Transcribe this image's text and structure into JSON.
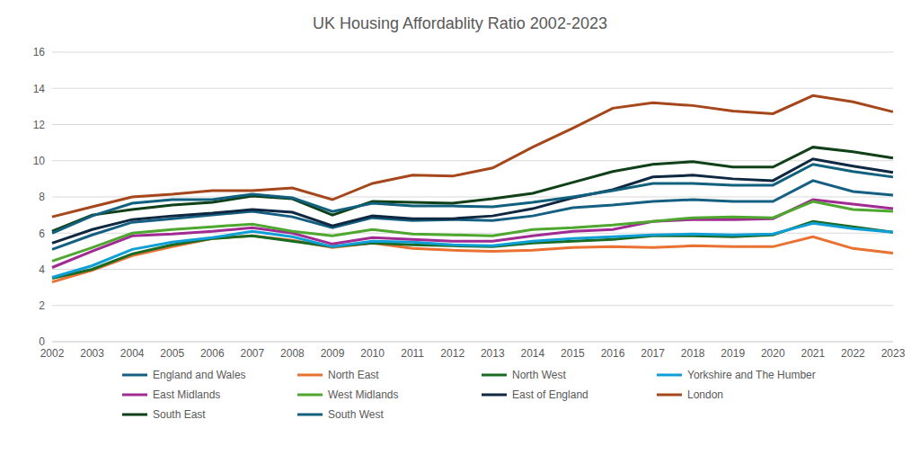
{
  "chart_data": {
    "type": "line",
    "title": "UK Housing Affordablity Ratio 2002-2023",
    "categories": [
      "2002",
      "2003",
      "2004",
      "2005",
      "2006",
      "2007",
      "2008",
      "2009",
      "2010",
      "2011",
      "2012",
      "2013",
      "2014",
      "2015",
      "2016",
      "2017",
      "2018",
      "2019",
      "2020",
      "2021",
      "2022",
      "2023"
    ],
    "ylim": [
      0,
      16
    ],
    "yticks": [
      0,
      2,
      4,
      6,
      8,
      10,
      12,
      14,
      16
    ],
    "grid": true,
    "legend": "bottom",
    "series": [
      {
        "name": "England and Wales",
        "color": "#156082",
        "values": [
          5.1,
          5.9,
          6.6,
          6.8,
          7.0,
          7.2,
          6.9,
          6.3,
          6.85,
          6.7,
          6.75,
          6.7,
          6.95,
          7.4,
          7.55,
          7.75,
          7.85,
          7.75,
          7.75,
          8.9,
          8.3,
          8.1
        ]
      },
      {
        "name": "North East",
        "color": "#E97132",
        "values": [
          3.3,
          3.95,
          4.75,
          5.25,
          5.7,
          5.85,
          5.6,
          5.2,
          5.45,
          5.15,
          5.05,
          5.0,
          5.05,
          5.2,
          5.25,
          5.2,
          5.3,
          5.25,
          5.25,
          5.8,
          5.15,
          4.9
        ]
      },
      {
        "name": "North West",
        "color": "#196B24",
        "values": [
          3.5,
          4.0,
          4.85,
          5.35,
          5.7,
          5.85,
          5.55,
          5.25,
          5.45,
          5.35,
          5.3,
          5.25,
          5.45,
          5.55,
          5.65,
          5.85,
          5.85,
          5.8,
          5.9,
          6.65,
          6.35,
          6.05
        ]
      },
      {
        "name": "Yorkshire and The Humber",
        "color": "#0F9ED5",
        "values": [
          3.55,
          4.2,
          5.1,
          5.5,
          5.75,
          6.1,
          5.8,
          5.25,
          5.55,
          5.5,
          5.35,
          5.3,
          5.55,
          5.7,
          5.8,
          5.9,
          5.95,
          5.9,
          5.95,
          6.55,
          6.25,
          6.05
        ]
      },
      {
        "name": "East Midlands",
        "color": "#A02B93",
        "values": [
          4.1,
          5.0,
          5.85,
          5.95,
          6.1,
          6.3,
          6.0,
          5.4,
          5.75,
          5.65,
          5.55,
          5.55,
          5.85,
          6.1,
          6.2,
          6.65,
          6.75,
          6.75,
          6.8,
          7.85,
          7.6,
          7.35
        ]
      },
      {
        "name": "West Midlands",
        "color": "#4EA72E",
        "values": [
          4.45,
          5.2,
          6.0,
          6.2,
          6.35,
          6.5,
          6.1,
          5.85,
          6.2,
          5.95,
          5.9,
          5.85,
          6.2,
          6.3,
          6.45,
          6.65,
          6.85,
          6.9,
          6.85,
          7.75,
          7.3,
          7.2
        ]
      },
      {
        "name": "East of England",
        "color": "#0E2841",
        "values": [
          5.45,
          6.2,
          6.75,
          6.95,
          7.1,
          7.3,
          7.15,
          6.4,
          6.95,
          6.8,
          6.8,
          6.95,
          7.35,
          7.95,
          8.4,
          9.1,
          9.2,
          9.0,
          8.9,
          10.1,
          9.7,
          9.35
        ]
      },
      {
        "name": "London",
        "color": "#A5461B",
        "values": [
          6.9,
          7.45,
          8.0,
          8.15,
          8.35,
          8.35,
          8.5,
          7.85,
          8.75,
          9.2,
          9.15,
          9.6,
          10.75,
          11.8,
          12.9,
          13.2,
          13.05,
          12.75,
          12.6,
          13.6,
          13.25,
          12.7
        ]
      },
      {
        "name": "South East",
        "color": "#0F4018",
        "values": [
          6.1,
          7.0,
          7.3,
          7.55,
          7.7,
          8.05,
          7.9,
          7.0,
          7.75,
          7.7,
          7.65,
          7.9,
          8.2,
          8.8,
          9.4,
          9.8,
          9.95,
          9.65,
          9.65,
          10.75,
          10.5,
          10.15
        ]
      },
      {
        "name": "South West",
        "color": "#10607E",
        "values": [
          6.0,
          6.95,
          7.65,
          7.85,
          7.85,
          8.15,
          7.95,
          7.2,
          7.65,
          7.5,
          7.5,
          7.45,
          7.7,
          8.0,
          8.35,
          8.75,
          8.75,
          8.65,
          8.65,
          9.8,
          9.4,
          9.1
        ]
      }
    ]
  }
}
